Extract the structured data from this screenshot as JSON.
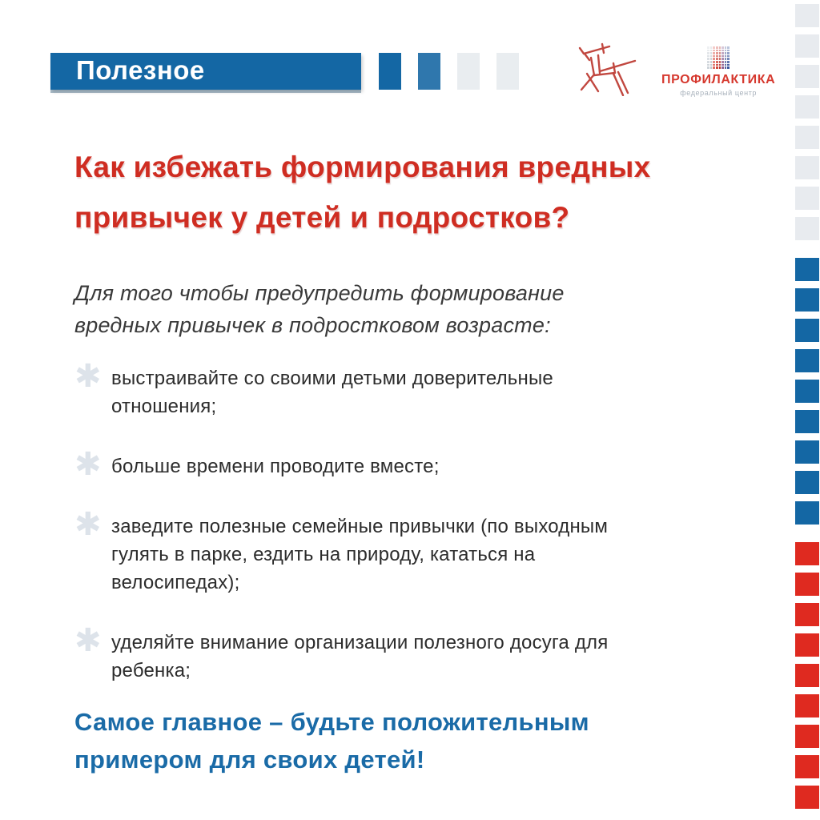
{
  "page": {
    "background": "#ffffff"
  },
  "header": {
    "banner": {
      "label": "Полезное",
      "color": "#1467a4",
      "text_color": "#ffffff"
    },
    "squares": [
      "#1467a4",
      "#2f77ad",
      "#e9edf0",
      "#e9edf0"
    ],
    "logo": {
      "animal_icon": "elk-line-art",
      "animal_color": "#c1473f",
      "brand": "ПРОФИЛАКТИКА",
      "brand_color": "#d6392f",
      "subtitle": "федеральный центр",
      "subtitle_color": "#a9b2bc",
      "mosaic_columns": [
        "#cdd3d9",
        "#bfc6cd",
        "#dd6a60",
        "#cf453b",
        "#b93931",
        "#8f6190",
        "#56669f",
        "#3a569b"
      ]
    }
  },
  "content": {
    "title": "Как избежать формирования вредных\nпривычек у детей и подростков?",
    "title_color": "#cf2d22",
    "intro": "Для того чтобы предупредить формирование\nвредных привычек в подростковом возрасте:",
    "intro_color": "#3a3a3a",
    "bullet_icon": "✱",
    "bullet_icon_color": "#dde3ea",
    "bullets": [
      "выстраивайте со своими детьми доверительные\nотношения;",
      "больше времени проводите вместе;",
      "заведите полезные семейные привычки (по выходным\nгулять в парке, ездить на природу, кататься на\nвелосипедах);",
      "уделяйте внимание организации полезного досуга для\nребенка;"
    ],
    "bullets_color": "#2c2c2c",
    "conclusion": "Самое главное – будьте положительным\nпримером для своих детей!",
    "conclusion_color": "#1a6ba7"
  },
  "right_rail": {
    "groups": [
      {
        "name": "gray",
        "color": "#e8ebef",
        "count": 8
      },
      {
        "name": "blue",
        "color": "#1467a4",
        "count": 9
      },
      {
        "name": "red",
        "color": "#df2a20",
        "count": 9
      }
    ]
  }
}
